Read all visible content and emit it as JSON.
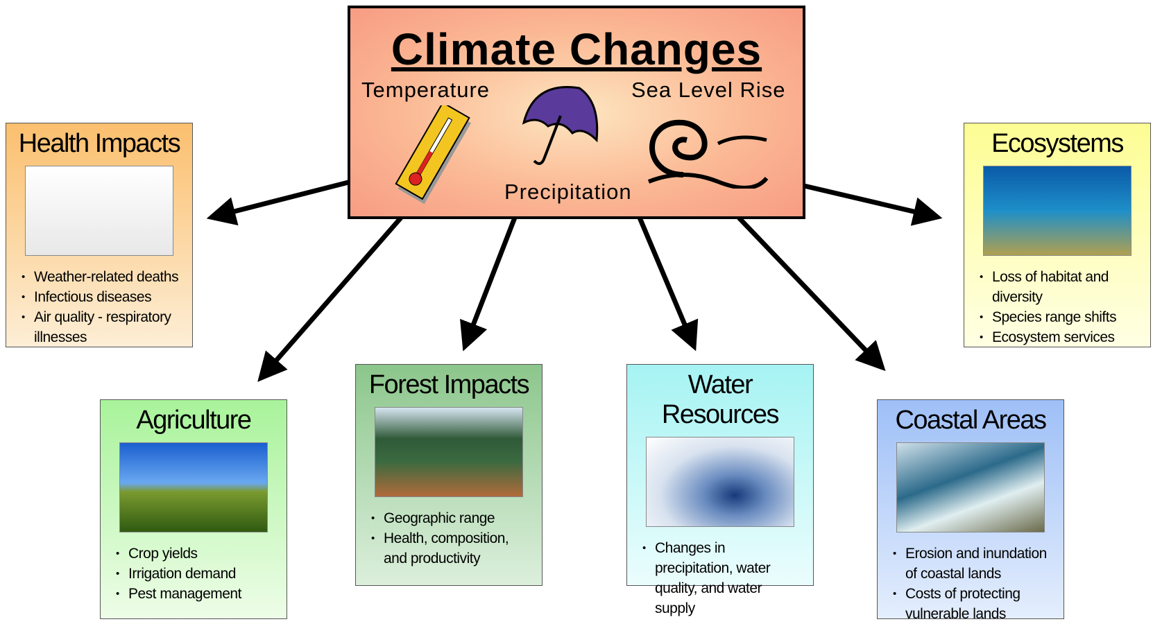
{
  "center": {
    "title": "Climate Changes",
    "labels": [
      "Temperature",
      "Precipitation",
      "Sea Level Rise"
    ]
  },
  "boxes": [
    {
      "title": "Health Impacts",
      "items": [
        "Weather-related deaths",
        "Infectious diseases",
        "Air quality - respiratory illnesses"
      ]
    },
    {
      "title": "Agriculture",
      "items": [
        "Crop yields",
        "Irrigation demand",
        "Pest management"
      ]
    },
    {
      "title": "Forest Impacts",
      "items": [
        "Geographic range",
        "Health, composition, and productivity"
      ]
    },
    {
      "title": "Water Resources",
      "items": [
        "Changes in precipitation, water quality, and water supply"
      ]
    },
    {
      "title": "Coastal Areas",
      "items": [
        "Erosion and inundation of coastal lands",
        "Costs of protecting vulnerable lands"
      ]
    },
    {
      "title": "Ecosystems",
      "items": [
        "Loss of habitat and diversity",
        "Species range shifts",
        "Ecosystem services"
      ]
    }
  ]
}
